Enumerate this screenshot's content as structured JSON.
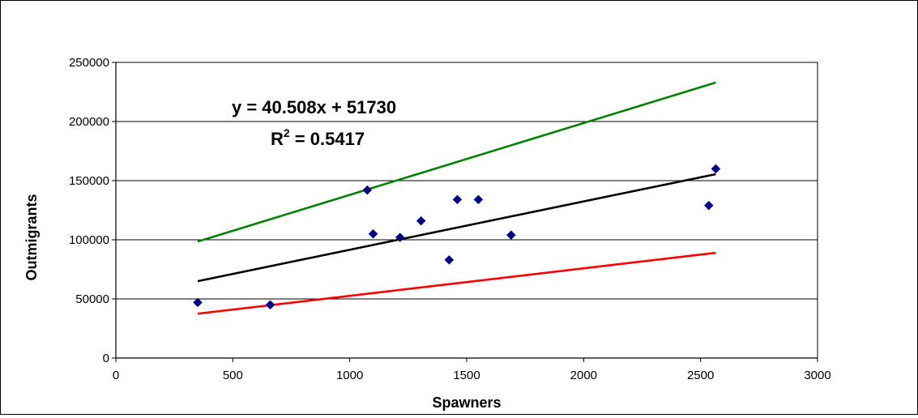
{
  "chart_data": {
    "type": "scatter",
    "title": "",
    "xlabel": "Spawners",
    "ylabel": "Outmigrants",
    "xlim": [
      0,
      3000
    ],
    "ylim": [
      0,
      250000
    ],
    "x_ticks": [
      "0",
      "500",
      "1000",
      "1500",
      "2000",
      "2500",
      "3000"
    ],
    "y_ticks": [
      "0",
      "50000",
      "100000",
      "150000",
      "200000",
      "250000"
    ],
    "grid": "horizontal",
    "points": [
      {
        "x": 350,
        "y": 47000
      },
      {
        "x": 660,
        "y": 45000
      },
      {
        "x": 1075,
        "y": 142000
      },
      {
        "x": 1100,
        "y": 105000
      },
      {
        "x": 1215,
        "y": 102000
      },
      {
        "x": 1305,
        "y": 116000
      },
      {
        "x": 1425,
        "y": 83000
      },
      {
        "x": 1460,
        "y": 134000
      },
      {
        "x": 1550,
        "y": 134000
      },
      {
        "x": 1690,
        "y": 104000
      },
      {
        "x": 2535,
        "y": 129000
      },
      {
        "x": 2565,
        "y": 160000
      }
    ],
    "point_color": "#000080",
    "lines": [
      {
        "color": "#008000",
        "x": [
          350,
          2565
        ],
        "y": [
          98500,
          233000
        ]
      },
      {
        "color": "#000000",
        "x": [
          350,
          2565
        ],
        "y": [
          65000,
          155500
        ]
      },
      {
        "color": "#ff0000",
        "x": [
          350,
          2565
        ],
        "y": [
          37500,
          89000
        ]
      }
    ],
    "equation": "y = 40.508x + 51730",
    "r2_label": "R",
    "r2_sup": "2",
    "r2_value": " = 0.5417"
  }
}
